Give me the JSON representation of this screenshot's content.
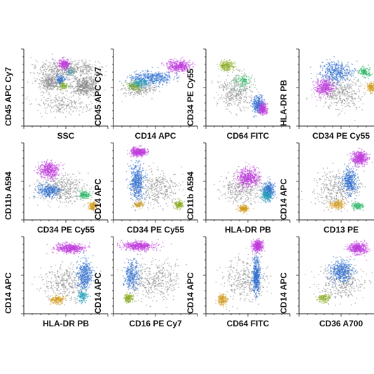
{
  "chart_data": [
    {
      "type": "scatter",
      "xlabel": "SSC",
      "ylabel": "CD45 APC Cy7",
      "series": [
        {
          "color": "#8a8a8a",
          "clusters": [
            [
              0.55,
              0.25,
              0.45,
              0.12,
              450
            ],
            [
              0.72,
              0.48,
              0.17,
              0.14,
              500
            ],
            [
              0.32,
              0.42,
              0.16,
              0.14,
              380
            ],
            [
              0.45,
              0.72,
              0.35,
              0.14,
              220
            ]
          ]
        },
        {
          "color": "#c03cdc",
          "clusters": [
            [
              0.48,
              0.2,
              0.07,
              0.08,
              200
            ]
          ]
        },
        {
          "color": "#2f6fd0",
          "clusters": [
            [
              0.44,
              0.4,
              0.06,
              0.07,
              110
            ]
          ]
        },
        {
          "color": "#7aa82a",
          "clusters": [
            [
              0.47,
              0.48,
              0.06,
              0.05,
              90
            ]
          ]
        },
        {
          "color": "#5a9aa8",
          "clusters": [
            [
              0.55,
              0.3,
              0.05,
              0.05,
              60
            ]
          ]
        }
      ]
    },
    {
      "type": "scatter",
      "xlabel": "CD14 APC",
      "ylabel": "CD45 APC Cy7",
      "series": [
        {
          "color": "#8a8a8a",
          "clusters": [
            [
              0.3,
              0.52,
              0.22,
              0.1,
              200
            ]
          ]
        },
        {
          "color": "#2f6fd0",
          "clusters": [
            [
              0.45,
              0.38,
              0.28,
              0.1,
              450
            ]
          ]
        },
        {
          "color": "#c03cdc",
          "clusters": [
            [
              0.78,
              0.22,
              0.16,
              0.08,
              400
            ]
          ]
        },
        {
          "color": "#7aa82a",
          "clusters": [
            [
              0.25,
              0.48,
              0.1,
              0.06,
              140
            ]
          ]
        },
        {
          "color": "#20a0b8",
          "clusters": [
            [
              0.32,
              0.44,
              0.1,
              0.06,
              120
            ]
          ]
        }
      ]
    },
    {
      "type": "scatter",
      "xlabel": "CD64 FITC",
      "ylabel": "CD34 PE Cy55",
      "series": [
        {
          "color": "#8a8a8a",
          "clusters": [
            [
              0.35,
              0.55,
              0.22,
              0.25,
              350
            ]
          ]
        },
        {
          "color": "#8aac22",
          "clusters": [
            [
              0.25,
              0.22,
              0.1,
              0.07,
              200
            ]
          ]
        },
        {
          "color": "#2f6fd0",
          "clusters": [
            [
              0.62,
              0.72,
              0.08,
              0.12,
              300
            ]
          ]
        },
        {
          "color": "#c03cdc",
          "clusters": [
            [
              0.68,
              0.78,
              0.06,
              0.08,
              220
            ]
          ]
        },
        {
          "color": "#30b868",
          "clusters": [
            [
              0.45,
              0.42,
              0.12,
              0.1,
              120
            ]
          ]
        }
      ]
    },
    {
      "type": "scatter",
      "xlabel": "CD34 PE Cy55",
      "ylabel": "HLA-DR PB",
      "series": [
        {
          "color": "#8a8a8a",
          "clusters": [
            [
              0.5,
              0.55,
              0.3,
              0.25,
              400
            ]
          ]
        },
        {
          "color": "#2f6fd0",
          "clusters": [
            [
              0.45,
              0.3,
              0.22,
              0.15,
              400
            ]
          ]
        },
        {
          "color": "#c03cdc",
          "clusters": [
            [
              0.3,
              0.5,
              0.12,
              0.12,
              350
            ]
          ]
        },
        {
          "color": "#30b868",
          "clusters": [
            [
              0.78,
              0.3,
              0.07,
              0.07,
              140
            ]
          ]
        },
        {
          "color": "#d29a1e",
          "clusters": [
            [
              0.86,
              0.5,
              0.06,
              0.07,
              140
            ]
          ]
        }
      ]
    },
    {
      "type": "scatter",
      "xlabel": "CD34 PE Cy55",
      "ylabel": "CD11b A594",
      "series": [
        {
          "color": "#8a8a8a",
          "clusters": [
            [
              0.45,
              0.6,
              0.3,
              0.2,
              400
            ]
          ]
        },
        {
          "color": "#c03cdc",
          "clusters": [
            [
              0.3,
              0.35,
              0.13,
              0.12,
              420
            ]
          ]
        },
        {
          "color": "#2f6fd0",
          "clusters": [
            [
              0.3,
              0.62,
              0.15,
              0.1,
              300
            ]
          ]
        },
        {
          "color": "#30b868",
          "clusters": [
            [
              0.72,
              0.68,
              0.08,
              0.06,
              130
            ]
          ]
        },
        {
          "color": "#d29a1e",
          "clusters": [
            [
              0.82,
              0.82,
              0.05,
              0.06,
              130
            ]
          ]
        }
      ]
    },
    {
      "type": "scatter",
      "xlabel": "CD34 PE Cy55",
      "ylabel": "CD14 APC",
      "series": [
        {
          "color": "#8a8a8a",
          "clusters": [
            [
              0.5,
              0.6,
              0.3,
              0.25,
              350
            ]
          ]
        },
        {
          "color": "#c03cdc",
          "clusters": [
            [
              0.3,
              0.12,
              0.1,
              0.06,
              380
            ]
          ]
        },
        {
          "color": "#2f6fd0",
          "clusters": [
            [
              0.28,
              0.5,
              0.1,
              0.25,
              450
            ]
          ]
        },
        {
          "color": "#8aac22",
          "clusters": [
            [
              0.78,
              0.8,
              0.06,
              0.06,
              140
            ]
          ]
        },
        {
          "color": "#d29a1e",
          "clusters": [
            [
              0.3,
              0.8,
              0.06,
              0.05,
              80
            ]
          ]
        }
      ]
    },
    {
      "type": "scatter",
      "xlabel": "HLA-DR PB",
      "ylabel": "CD11b A594",
      "series": [
        {
          "color": "#8a8a8a",
          "clusters": [
            [
              0.45,
              0.6,
              0.3,
              0.2,
              350
            ]
          ]
        },
        {
          "color": "#c03cdc",
          "clusters": [
            [
              0.5,
              0.45,
              0.15,
              0.13,
              450
            ]
          ]
        },
        {
          "color": "#2f6fd0",
          "clusters": [
            [
              0.75,
              0.62,
              0.08,
              0.12,
              300
            ]
          ]
        },
        {
          "color": "#20a0b8",
          "clusters": [
            [
              0.72,
              0.68,
              0.06,
              0.08,
              160
            ]
          ]
        },
        {
          "color": "#d29a1e",
          "clusters": [
            [
              0.45,
              0.85,
              0.07,
              0.05,
              160
            ]
          ]
        }
      ]
    },
    {
      "type": "scatter",
      "xlabel": "CD13 PE",
      "ylabel": "CD14 APC",
      "series": [
        {
          "color": "#8a8a8a",
          "clusters": [
            [
              0.45,
              0.6,
              0.3,
              0.25,
              350
            ]
          ]
        },
        {
          "color": "#c03cdc",
          "clusters": [
            [
              0.72,
              0.2,
              0.1,
              0.1,
              420
            ]
          ]
        },
        {
          "color": "#2f6fd0",
          "clusters": [
            [
              0.6,
              0.5,
              0.1,
              0.18,
              380
            ]
          ]
        },
        {
          "color": "#d29a1e",
          "clusters": [
            [
              0.45,
              0.8,
              0.1,
              0.06,
              150
            ]
          ]
        },
        {
          "color": "#30b868",
          "clusters": [
            [
              0.7,
              0.82,
              0.07,
              0.05,
              120
            ]
          ]
        }
      ]
    },
    {
      "type": "scatter",
      "xlabel": "HLA-DR PB",
      "ylabel": "CD14 APC",
      "series": [
        {
          "color": "#8a8a8a",
          "clusters": [
            [
              0.5,
              0.6,
              0.3,
              0.25,
              350
            ]
          ]
        },
        {
          "color": "#c03cdc",
          "clusters": [
            [
              0.55,
              0.15,
              0.18,
              0.07,
              450
            ]
          ]
        },
        {
          "color": "#2f6fd0",
          "clusters": [
            [
              0.72,
              0.5,
              0.1,
              0.22,
              400
            ]
          ]
        },
        {
          "color": "#d29a1e",
          "clusters": [
            [
              0.4,
              0.82,
              0.09,
              0.06,
              160
            ]
          ]
        },
        {
          "color": "#20a0b8",
          "clusters": [
            [
              0.7,
              0.78,
              0.06,
              0.08,
              120
            ]
          ]
        }
      ]
    },
    {
      "type": "scatter",
      "xlabel": "CD16 PE Cy7",
      "ylabel": "CD14 APC",
      "series": [
        {
          "color": "#8a8a8a",
          "clusters": [
            [
              0.5,
              0.55,
              0.35,
              0.3,
              400
            ]
          ]
        },
        {
          "color": "#c03cdc",
          "clusters": [
            [
              0.3,
              0.12,
              0.2,
              0.06,
              450
            ]
          ]
        },
        {
          "color": "#2f6fd0",
          "clusters": [
            [
              0.22,
              0.5,
              0.1,
              0.2,
              300
            ]
          ]
        },
        {
          "color": "#8aac22",
          "clusters": [
            [
              0.18,
              0.8,
              0.06,
              0.06,
              140
            ]
          ]
        }
      ]
    },
    {
      "type": "scatter",
      "xlabel": "CD64 FITC",
      "ylabel": "CD14 APC",
      "series": [
        {
          "color": "#8a8a8a",
          "clusters": [
            [
              0.45,
              0.55,
              0.3,
              0.3,
              350
            ]
          ]
        },
        {
          "color": "#c03cdc",
          "clusters": [
            [
              0.62,
              0.12,
              0.07,
              0.08,
              350
            ]
          ]
        },
        {
          "color": "#2f6fd0",
          "clusters": [
            [
              0.6,
              0.5,
              0.05,
              0.25,
              450
            ]
          ]
        },
        {
          "color": "#d29a1e",
          "clusters": [
            [
              0.2,
              0.82,
              0.06,
              0.08,
              160
            ]
          ]
        }
      ]
    },
    {
      "type": "scatter",
      "xlabel": "CD36 A700",
      "ylabel": "CD14 APC",
      "series": [
        {
          "color": "#8a8a8a",
          "clusters": [
            [
              0.5,
              0.6,
              0.3,
              0.25,
              350
            ]
          ]
        },
        {
          "color": "#c03cdc",
          "clusters": [
            [
              0.7,
              0.15,
              0.12,
              0.08,
              420
            ]
          ]
        },
        {
          "color": "#2f6fd0",
          "clusters": [
            [
              0.5,
              0.45,
              0.15,
              0.15,
              400
            ]
          ]
        },
        {
          "color": "#8aac22",
          "clusters": [
            [
              0.3,
              0.8,
              0.08,
              0.06,
              130
            ]
          ]
        }
      ]
    }
  ]
}
